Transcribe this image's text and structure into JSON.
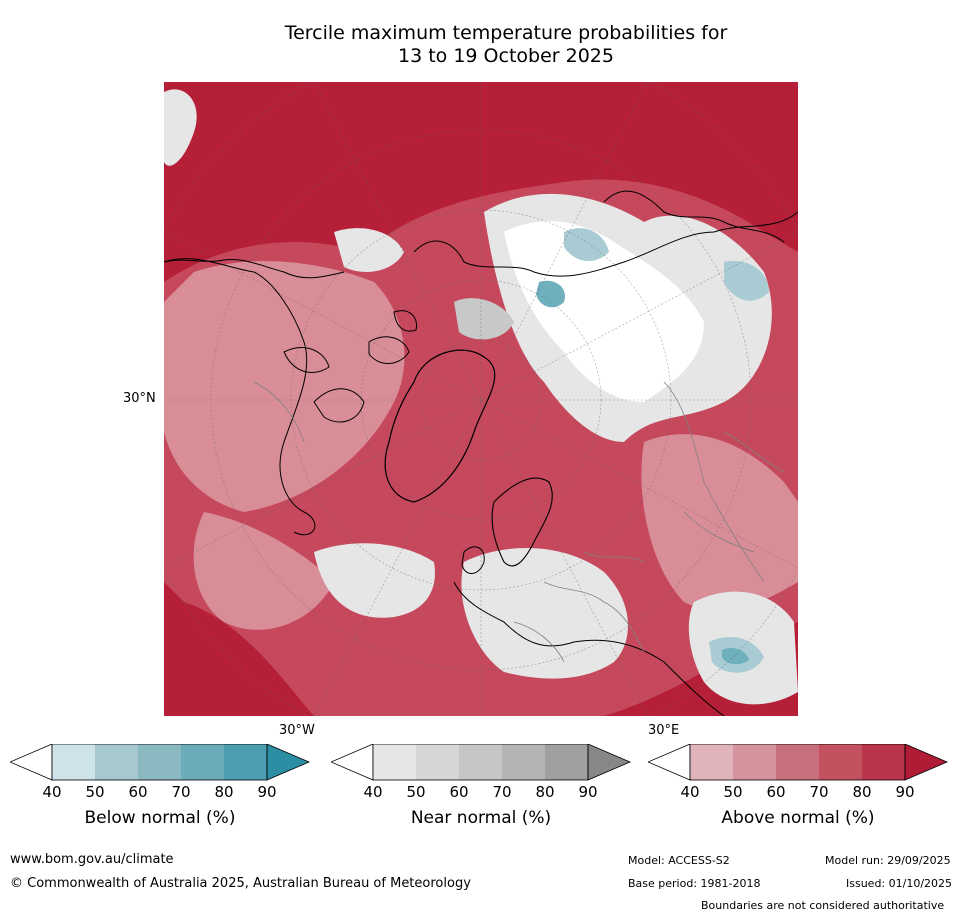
{
  "title": {
    "line1": "Tercile maximum temperature probabilities for",
    "line2": "13 to 19 October 2025"
  },
  "map": {
    "lat_label": "30°N",
    "lon_labels": {
      "west": "30°W",
      "east": "30°E"
    },
    "colors": {
      "above_dark": "#b51f38",
      "above_mid": "#c5485c",
      "above_light": "#d98e97",
      "near_light": "#e6e6e6",
      "near_mid": "#c8c8c8",
      "below_light": "#a9ccd4",
      "below_mid": "#6fb0bf",
      "coastline": "#000000",
      "borders": "#808080"
    }
  },
  "colorbars": [
    {
      "title": "Below normal (%)",
      "ticks": [
        "40",
        "50",
        "60",
        "70",
        "80",
        "90"
      ],
      "colors": [
        "#cde3e9",
        "#a8c8d0",
        "#8ab9c2",
        "#6cabb8",
        "#4a9eaf",
        "#2b8ea3"
      ]
    },
    {
      "title": "Near normal (%)",
      "ticks": [
        "40",
        "50",
        "60",
        "70",
        "80",
        "90"
      ],
      "colors": [
        "#e6e6e6",
        "#d6d6d6",
        "#c6c6c6",
        "#b4b4b4",
        "#a0a0a0",
        "#878787"
      ]
    },
    {
      "title": "Above normal (%)",
      "ticks": [
        "40",
        "50",
        "60",
        "70",
        "80",
        "90"
      ],
      "colors": [
        "#e0b4ba",
        "#d4949d",
        "#c86f7c",
        "#c2525f",
        "#b8344a",
        "#b01c35"
      ]
    }
  ],
  "footer": {
    "website": "www.bom.gov.au/climate",
    "copyright": "© Commonwealth of Australia 2025, Australian Bureau of Meteorology",
    "model": "Model: ACCESS-S2",
    "model_run": "Model run: 29/09/2025",
    "base_period": "Base period: 1981-2018",
    "issued": "Issued: 01/10/2025",
    "disclaimer": "Boundaries are not considered authoritative"
  }
}
